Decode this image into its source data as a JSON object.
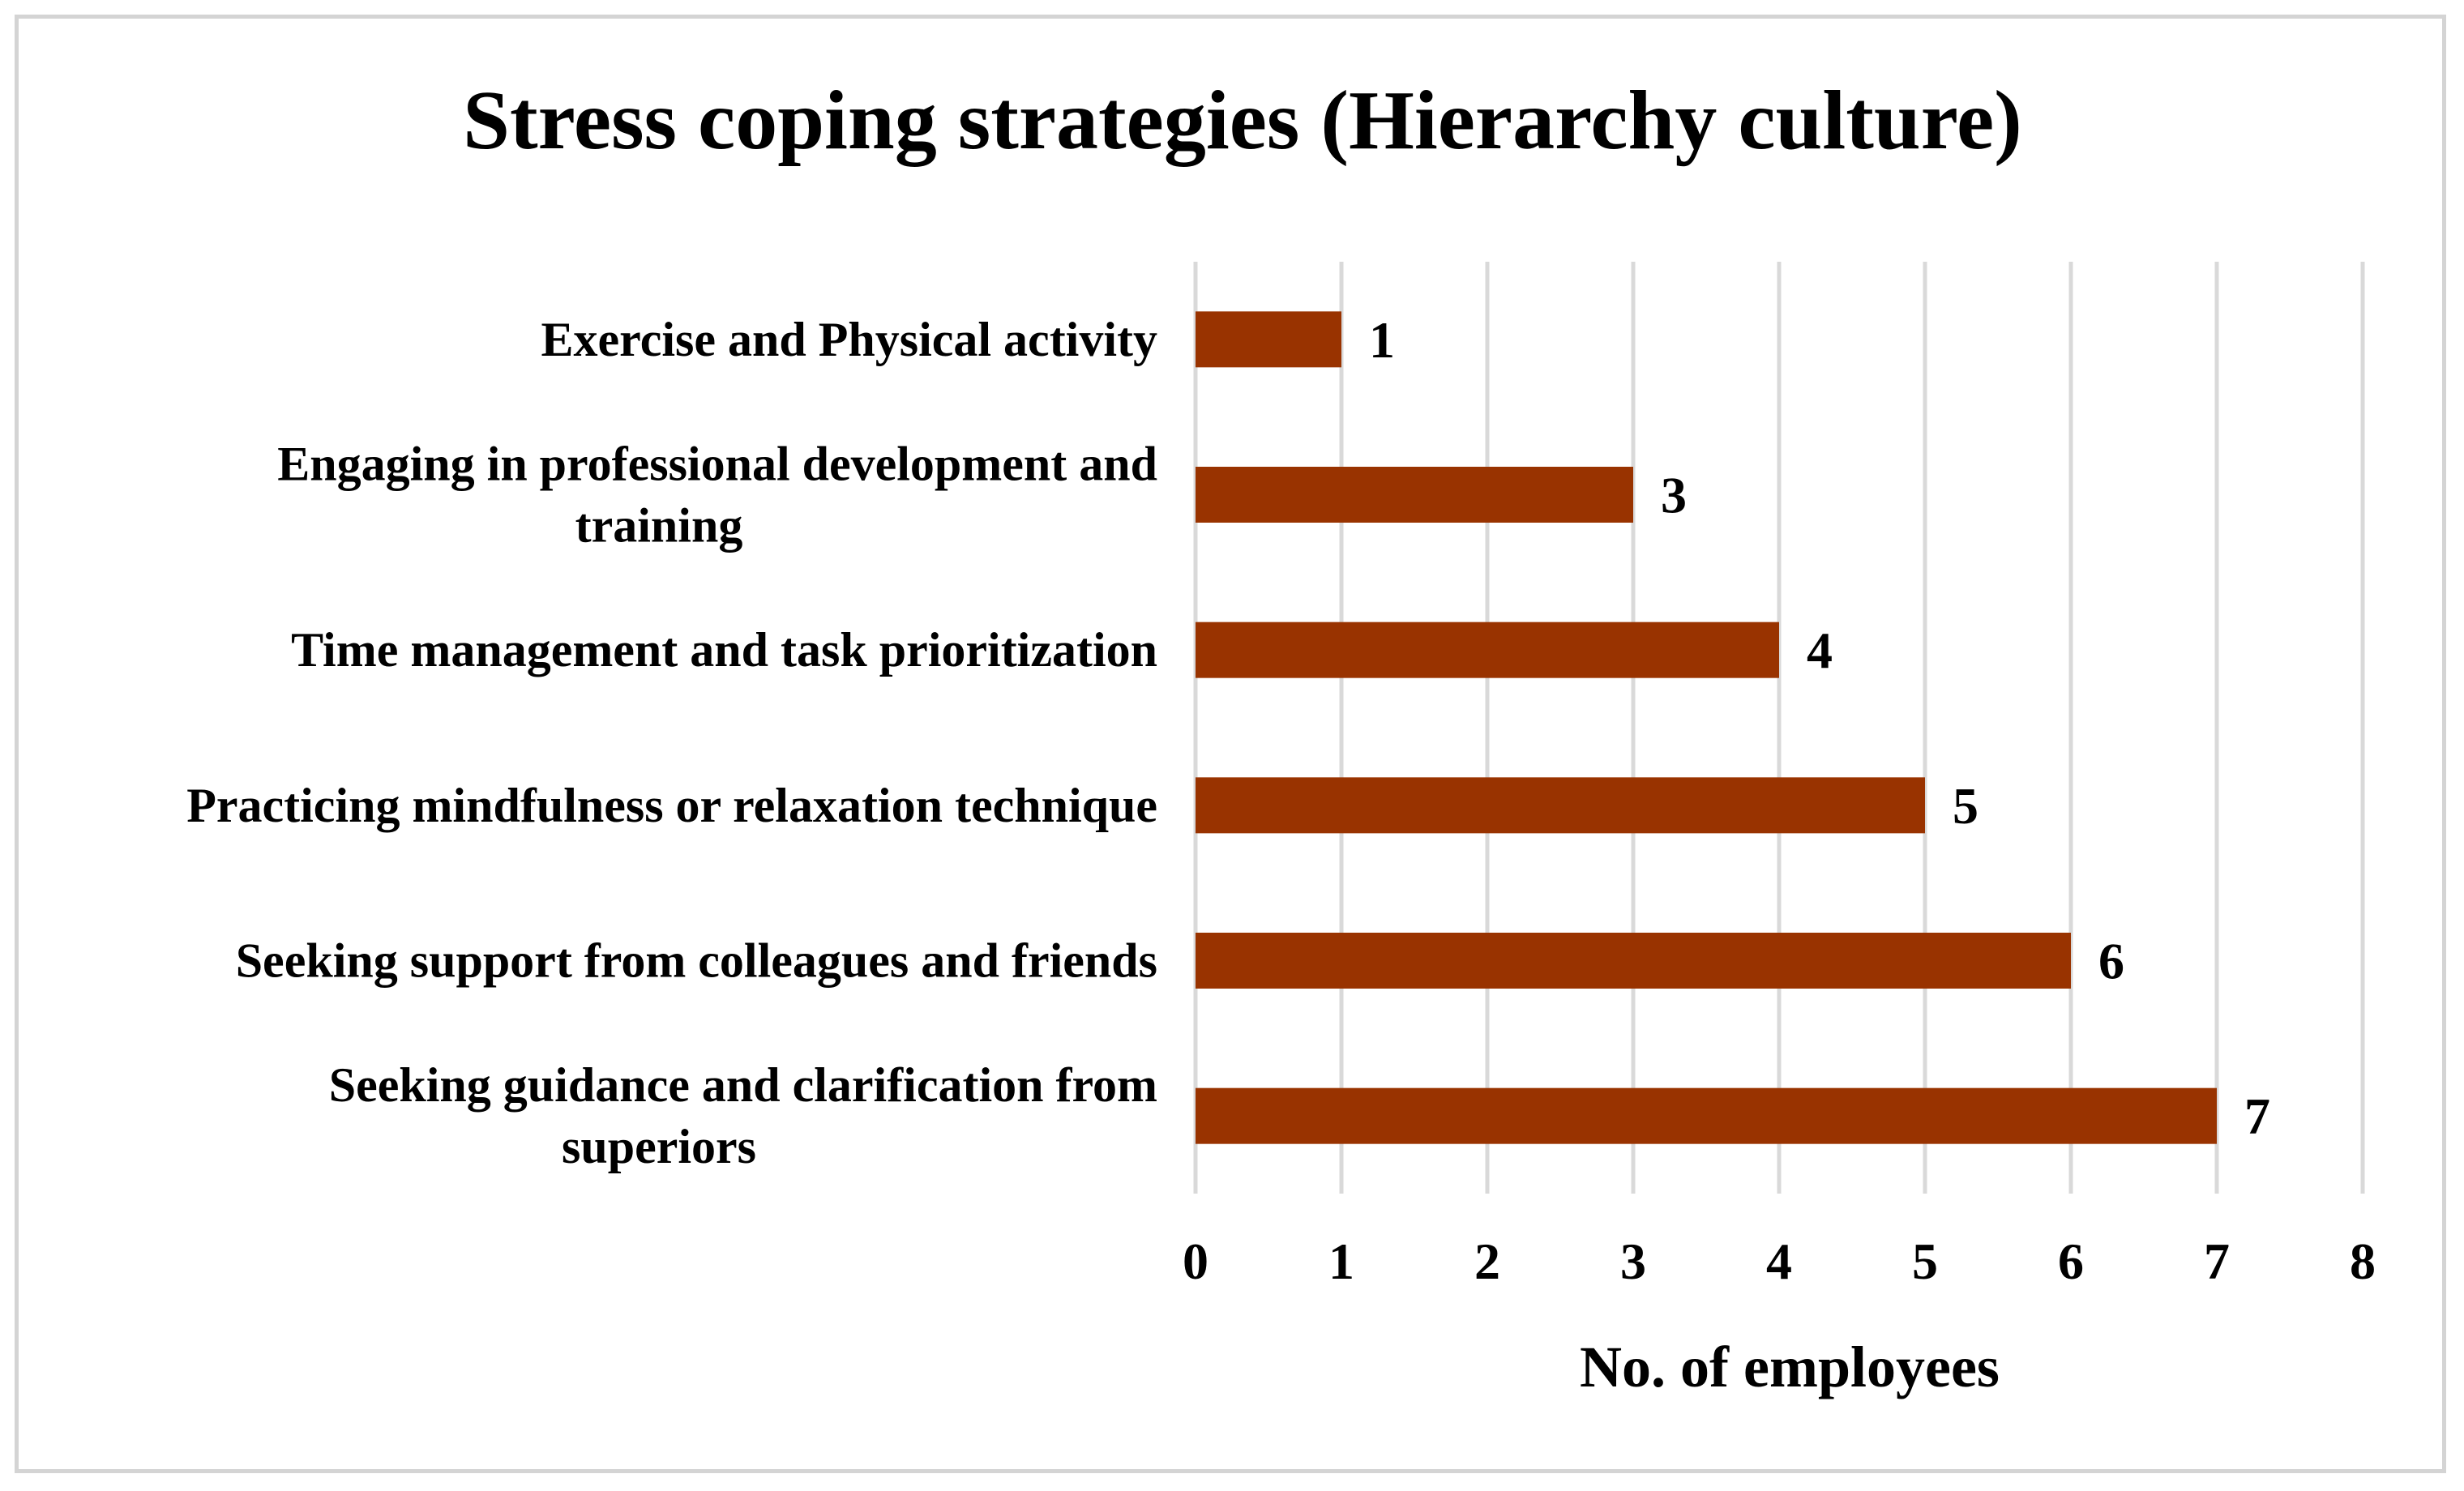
{
  "chart_data": {
    "type": "bar",
    "orientation": "horizontal",
    "title": "Stress coping strategies (Hierarchy culture)",
    "xlabel": "No. of employees",
    "ylabel": "",
    "categories": [
      [
        "Exercise and Physical activity"
      ],
      [
        "Engaging in professional development and",
        "training"
      ],
      [
        "Time management and task prioritization"
      ],
      [
        "Practicing mindfulness or relaxation technique"
      ],
      [
        "Seeking support from colleagues and friends"
      ],
      [
        "Seeking guidance and clarification from",
        "superiors"
      ]
    ],
    "values": [
      1,
      3,
      4,
      5,
      6,
      7
    ],
    "xlim": [
      0,
      8
    ],
    "xticks": [
      "0",
      "1",
      "2",
      "3",
      "4",
      "5",
      "6",
      "7",
      "8"
    ],
    "grid": true,
    "legend": "none",
    "bar_color": "#993300",
    "grid_color": "#d9d9d9",
    "data_labels": true
  }
}
